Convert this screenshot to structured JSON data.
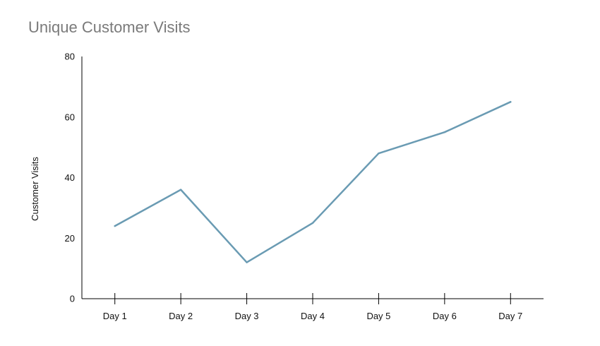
{
  "chart_data": {
    "type": "line",
    "title": "Unique Customer Visits",
    "xlabel": "",
    "ylabel": "Customer Visits",
    "categories": [
      "Day 1",
      "Day 2",
      "Day 3",
      "Day 4",
      "Day 5",
      "Day 6",
      "Day 7"
    ],
    "series": [
      {
        "values": [
          24,
          36,
          12,
          25,
          48,
          55,
          65
        ],
        "color": "#6a9bb3"
      }
    ],
    "ylim": [
      0,
      80
    ],
    "yticks": [
      0,
      20,
      40,
      60,
      80
    ],
    "yticklabels": [
      "0",
      "20",
      "40",
      "60",
      "80"
    ],
    "grid": false,
    "legend": "none"
  }
}
